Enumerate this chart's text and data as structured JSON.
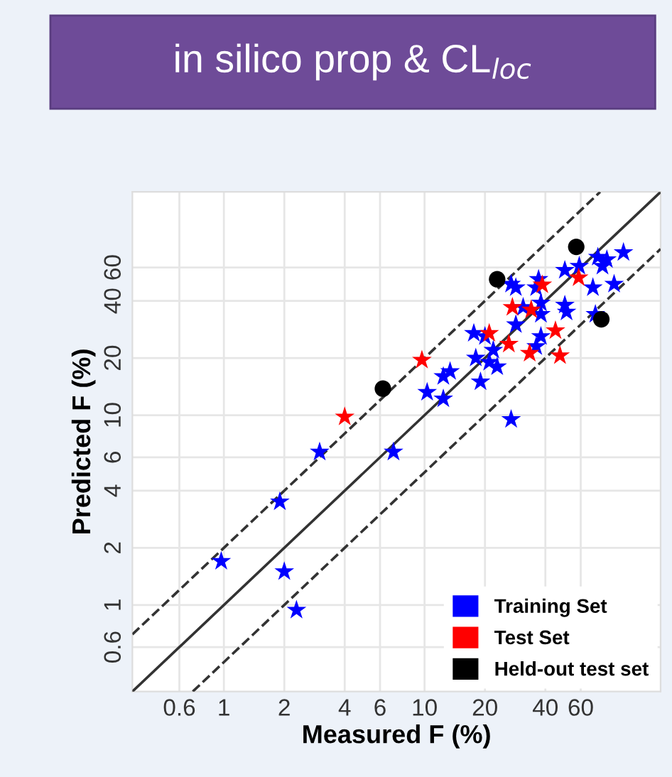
{
  "chart_data": {
    "type": "scatter",
    "title": "in silico prop & CL$_{loc}$",
    "xlabel": "Measured F (%)",
    "ylabel": "Predicted F (%)",
    "log": "xy",
    "xlim": [
      0.35,
      150
    ],
    "ylim": [
      0.35,
      150
    ],
    "xticks": [
      0.6,
      1,
      2,
      4,
      6,
      10,
      20,
      40,
      60
    ],
    "yticks": [
      0.6,
      1,
      2,
      4,
      6,
      10,
      20,
      40,
      60
    ],
    "grid": true,
    "legend": "bottom right",
    "series": [
      {
        "name": "Training Set",
        "color": "#0000ff",
        "marker": "star",
        "x": [
          98,
          73,
          81,
          77,
          59,
          50,
          69,
          88,
          71,
          28.5,
          27,
          37,
          36,
          38,
          31,
          50,
          51,
          38,
          28.5,
          17.6,
          20,
          22,
          18,
          21,
          23,
          38,
          36,
          19,
          13.4,
          12.4,
          10.3,
          12.4,
          27,
          7.0,
          3.0,
          1.9,
          0.97,
          2.0,
          2.3
        ],
        "values": [
          72,
          68,
          66,
          61,
          61,
          58,
          47,
          49,
          34,
          47,
          49,
          52,
          47,
          39,
          37,
          38,
          35,
          34,
          30,
          27,
          26,
          22,
          20,
          19,
          18,
          26,
          23,
          15,
          17,
          16,
          13.2,
          12.2,
          9.5,
          6.4,
          6.4,
          3.5,
          1.7,
          1.5,
          0.94
        ]
      },
      {
        "name": "Test Set",
        "color": "#ff0000",
        "marker": "star",
        "x": [
          4.0,
          9.7,
          21,
          27.4,
          34,
          38.6,
          58.6,
          44.9,
          33.4,
          47.3,
          26.3
        ],
        "values": [
          9.8,
          19.5,
          27,
          37,
          35.9,
          48.6,
          53,
          27.9,
          21.2,
          20.6,
          23.7
        ]
      },
      {
        "name": "Held-out test set",
        "color": "#000000",
        "marker": "circle",
        "x": [
          57,
          23,
          76,
          6.2
        ],
        "values": [
          77,
          52,
          32,
          13.8
        ]
      },
      {
        "type": "line",
        "color": "#333333",
        "line_style": "solid",
        "marker": "none",
        "x": [
          0.35,
          150
        ],
        "values": [
          0.35,
          150
        ]
      },
      {
        "type": "line",
        "color": "#333333",
        "line_style": "dashed",
        "marker": "none",
        "x": [
          0.35,
          75
        ],
        "values": [
          0.7,
          150
        ]
      },
      {
        "type": "line",
        "color": "#333333",
        "line_style": "dashed",
        "marker": "none",
        "x": [
          0.7,
          150
        ],
        "values": [
          0.35,
          75
        ]
      }
    ]
  }
}
